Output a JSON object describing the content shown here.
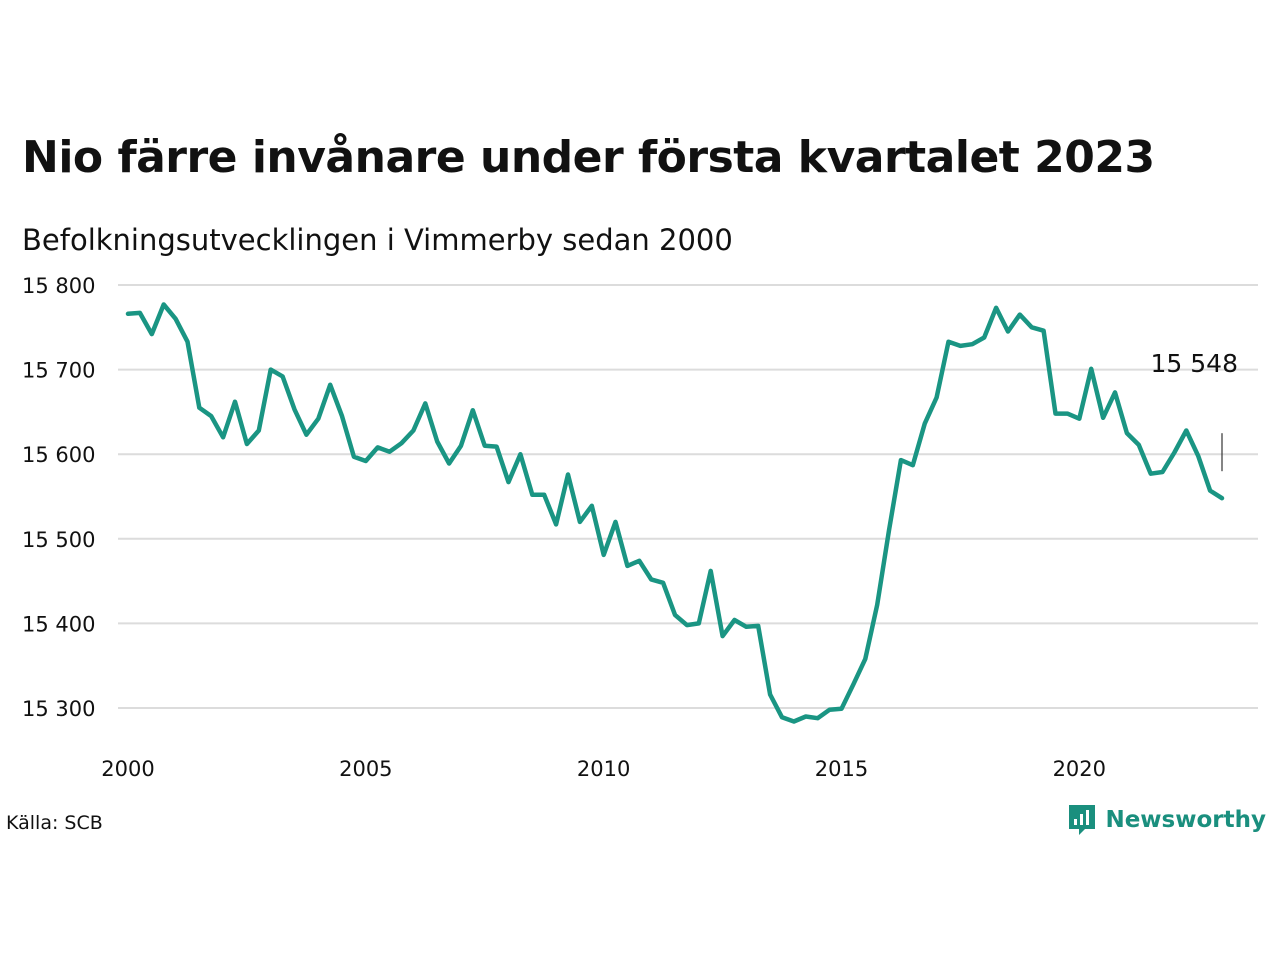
{
  "title": "Nio färre invånare under första kvartalet 2023",
  "subtitle": "Befolkningsutvecklingen i Vimmerby sedan 2000",
  "source": "Källa: SCB",
  "brand": {
    "name": "Newsworthy",
    "icon": "newsworthy-logo-icon",
    "color": "#1a8f7e"
  },
  "chart_data": {
    "type": "line",
    "title": "Nio färre invånare under första kvartalet 2023",
    "subtitle": "Befolkningsutvecklingen i Vimmerby sedan 2000",
    "xlabel": "",
    "ylabel": "",
    "xlim": [
      2000,
      2023.5
    ],
    "ylim": [
      15260,
      15800
    ],
    "grid": true,
    "line_color": "#1a9583",
    "grid_color": "#dcdcdc",
    "y_ticks": [
      15300,
      15400,
      15500,
      15600,
      15700,
      15800
    ],
    "y_tick_labels": [
      "15 300",
      "15 400",
      "15 500",
      "15 600",
      "15 700",
      "15 800"
    ],
    "x_ticks": [
      2000,
      2005,
      2010,
      2015,
      2020
    ],
    "x_tick_labels": [
      "2000",
      "2005",
      "2010",
      "2015",
      "2020"
    ],
    "annotation": {
      "text": "15 548",
      "x": 2023.0,
      "y": 15548
    },
    "series": [
      {
        "x": [
          2000.0,
          2000.25,
          2000.5,
          2000.75,
          2001.0,
          2001.25,
          2001.5,
          2001.75,
          2002.0,
          2002.25,
          2002.5,
          2002.75,
          2003.0,
          2003.25,
          2003.5,
          2003.75,
          2004.0,
          2004.25,
          2004.5,
          2004.75,
          2005.0,
          2005.25,
          2005.5,
          2005.75,
          2006.0,
          2006.25,
          2006.5,
          2006.75,
          2007.0,
          2007.25,
          2007.5,
          2007.75,
          2008.0,
          2008.25,
          2008.5,
          2008.75,
          2009.0,
          2009.25,
          2009.5,
          2009.75,
          2010.0,
          2010.25,
          2010.5,
          2010.75,
          2011.0,
          2011.25,
          2011.5,
          2011.75,
          2012.0,
          2012.25,
          2012.5,
          2012.75,
          2013.0,
          2013.25,
          2013.5,
          2013.75,
          2014.0,
          2014.25,
          2014.5,
          2014.75,
          2015.0,
          2015.25,
          2015.5,
          2015.75,
          2016.0,
          2016.25,
          2016.5,
          2016.75,
          2017.0,
          2017.25,
          2017.5,
          2017.75,
          2018.0,
          2018.25,
          2018.5,
          2018.75,
          2019.0,
          2019.25,
          2019.5,
          2019.75,
          2020.0,
          2020.25,
          2020.5,
          2020.75,
          2021.0,
          2021.25,
          2021.5,
          2021.75,
          2022.0,
          2022.25,
          2022.5,
          2022.75,
          2023.0
        ],
        "values": [
          15766,
          15767,
          15742,
          15777,
          15760,
          15733,
          15655,
          15645,
          15620,
          15662,
          15612,
          15628,
          15700,
          15692,
          15653,
          15623,
          15642,
          15682,
          15645,
          15597,
          15592,
          15608,
          15603,
          15613,
          15628,
          15660,
          15615,
          15589,
          15610,
          15652,
          15610,
          15609,
          15567,
          15600,
          15552,
          15552,
          15517,
          15576,
          15520,
          15539,
          15481,
          15520,
          15468,
          15474,
          15452,
          15448,
          15410,
          15398,
          15400,
          15462,
          15385,
          15404,
          15396,
          15397,
          15316,
          15289,
          15284,
          15290,
          15288,
          15298,
          15299,
          15328,
          15358,
          15422,
          15510,
          15593,
          15587,
          15636,
          15667,
          15733,
          15728,
          15730,
          15738,
          15773,
          15745,
          15765,
          15750,
          15746,
          15648,
          15648,
          15642,
          15701,
          15643,
          15673,
          15625,
          15611,
          15577,
          15579,
          15602,
          15628,
          15598,
          15557,
          15548
        ]
      }
    ]
  }
}
